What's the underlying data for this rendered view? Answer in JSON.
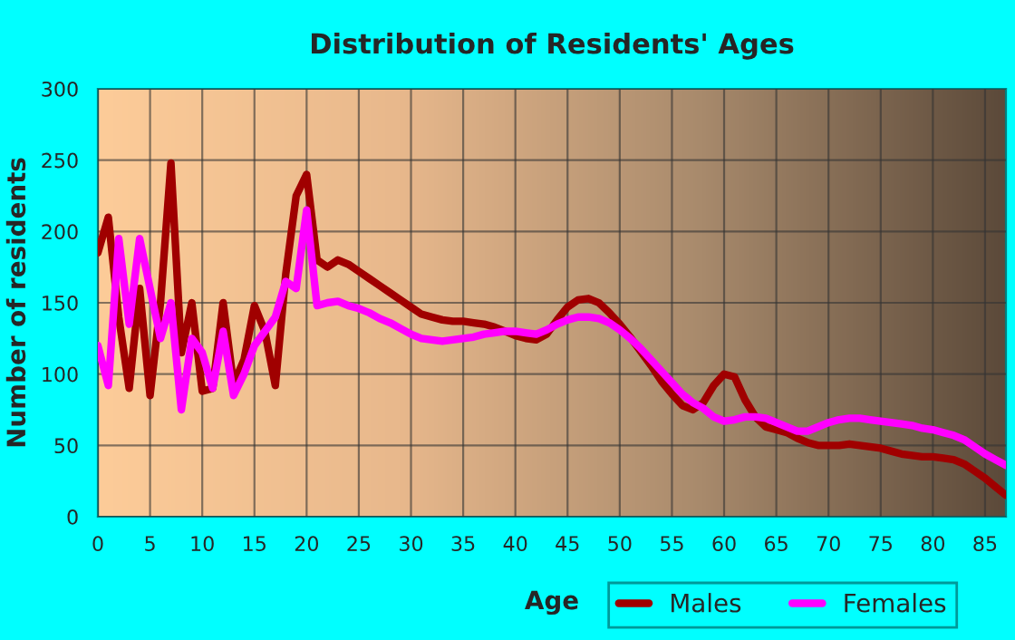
{
  "chart_data": {
    "type": "line",
    "title": "Distribution of Residents' Ages",
    "xlabel": "Age",
    "ylabel": "Number of residents",
    "x": [
      0,
      1,
      2,
      3,
      4,
      5,
      6,
      7,
      8,
      9,
      10,
      11,
      12,
      13,
      14,
      15,
      16,
      17,
      18,
      19,
      20,
      21,
      22,
      23,
      24,
      25,
      26,
      27,
      28,
      29,
      30,
      31,
      32,
      33,
      34,
      35,
      36,
      37,
      38,
      39,
      40,
      41,
      42,
      43,
      44,
      45,
      46,
      47,
      48,
      49,
      50,
      51,
      52,
      53,
      54,
      55,
      56,
      57,
      58,
      59,
      60,
      61,
      62,
      63,
      64,
      65,
      66,
      67,
      68,
      69,
      70,
      71,
      72,
      73,
      74,
      75,
      76,
      77,
      78,
      79,
      80,
      81,
      82,
      83,
      84,
      85,
      86,
      87
    ],
    "series": [
      {
        "name": "Males",
        "color": "#a00000",
        "values": [
          185,
          210,
          140,
          90,
          160,
          85,
          150,
          248,
          115,
          150,
          88,
          90,
          150,
          93,
          110,
          148,
          130,
          92,
          170,
          225,
          240,
          180,
          175,
          180,
          177,
          172,
          167,
          162,
          157,
          152,
          147,
          142,
          140,
          138,
          137,
          137,
          136,
          135,
          133,
          130,
          127,
          125,
          124,
          128,
          138,
          147,
          152,
          153,
          150,
          143,
          135,
          126,
          116,
          106,
          95,
          86,
          78,
          75,
          80,
          92,
          100,
          98,
          82,
          70,
          63,
          61,
          59,
          55,
          52,
          50,
          50,
          50,
          51,
          50,
          49,
          48,
          46,
          44,
          43,
          42,
          42,
          41,
          40,
          37,
          32,
          27,
          21,
          15
        ]
      },
      {
        "name": "Females",
        "color": "#ff00ff",
        "values": [
          120,
          92,
          195,
          135,
          195,
          160,
          125,
          150,
          75,
          125,
          115,
          90,
          130,
          85,
          100,
          120,
          130,
          140,
          165,
          160,
          215,
          148,
          150,
          151,
          148,
          146,
          143,
          139,
          136,
          132,
          128,
          125,
          124,
          123,
          124,
          125,
          126,
          128,
          129,
          130,
          130,
          129,
          128,
          131,
          135,
          138,
          140,
          140,
          139,
          136,
          131,
          125,
          118,
          110,
          102,
          94,
          86,
          80,
          76,
          70,
          67,
          68,
          70,
          70,
          69,
          66,
          63,
          60,
          60,
          63,
          66,
          68,
          69,
          69,
          68,
          67,
          66,
          65,
          64,
          62,
          61,
          59,
          57,
          54,
          49,
          44,
          40,
          36
        ]
      }
    ],
    "xlim": [
      0,
      87
    ],
    "xticks": [
      0,
      5,
      10,
      15,
      20,
      25,
      30,
      35,
      40,
      45,
      50,
      55,
      60,
      65,
      70,
      75,
      80,
      85
    ],
    "ylim": [
      0,
      300
    ],
    "yticks": [
      0,
      50,
      100,
      150,
      200,
      250,
      300
    ],
    "grid": true,
    "legend": "bottom right",
    "line_style": "solid"
  }
}
